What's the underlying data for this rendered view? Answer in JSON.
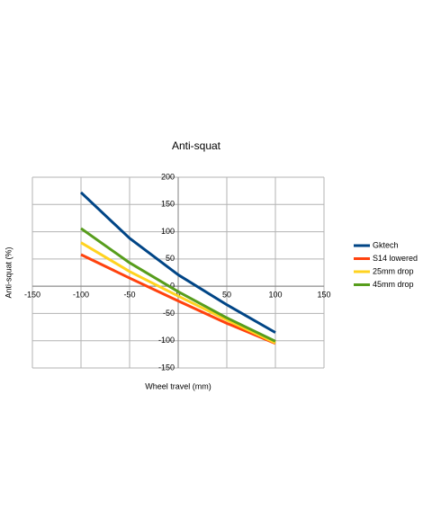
{
  "chart_data": {
    "type": "line",
    "title": "Anti-squat",
    "x_label": "Wheel travel (mm)",
    "y_label": "Anti-squat (%)",
    "x": [
      -100,
      -50,
      0,
      50,
      100
    ],
    "series": [
      {
        "name": "Gktech",
        "color": "#004586",
        "values": [
          172,
          88,
          21,
          -34,
          -85
        ]
      },
      {
        "name": "S14 lowered",
        "color": "#ff420e",
        "values": [
          58,
          15,
          -27,
          -68,
          -105
        ]
      },
      {
        "name": "25mm drop",
        "color": "#ffd320",
        "values": [
          80,
          27,
          -18,
          -62,
          -104
        ]
      },
      {
        "name": "45mm drop",
        "color": "#579d1c",
        "values": [
          106,
          43,
          -10,
          -58,
          -101
        ]
      }
    ],
    "xlim": [
      -150,
      150
    ],
    "xticks": [
      -150,
      -100,
      -50,
      0,
      50,
      100,
      150
    ],
    "ylim": [
      -150,
      200
    ],
    "yticks": [
      -150,
      -100,
      -50,
      0,
      50,
      100,
      150,
      200
    ],
    "grid": true,
    "legend": "right"
  }
}
